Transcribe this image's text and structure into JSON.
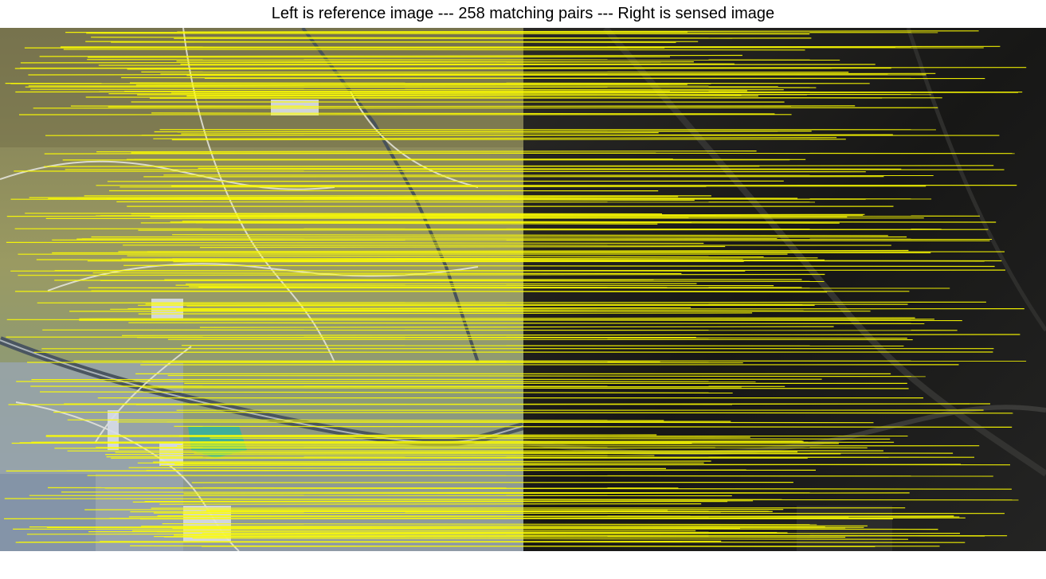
{
  "figure": {
    "title": "Left is reference image --- 258 matching pairs --- Right is sensed image"
  },
  "palette": {
    "match_line": "#ffff00",
    "reference_base": "#8f9a6a",
    "reference_farmland": "#9aa6b4",
    "reference_water": "#3fae9a",
    "reference_road": "#4a5560",
    "sensed_base": "#1c1c1a",
    "sensed_road": "#3a3a38"
  },
  "images": {
    "reference": {
      "icon": "satellite-image-reference"
    },
    "sensed": {
      "icon": "satellite-image-sensed"
    }
  }
}
